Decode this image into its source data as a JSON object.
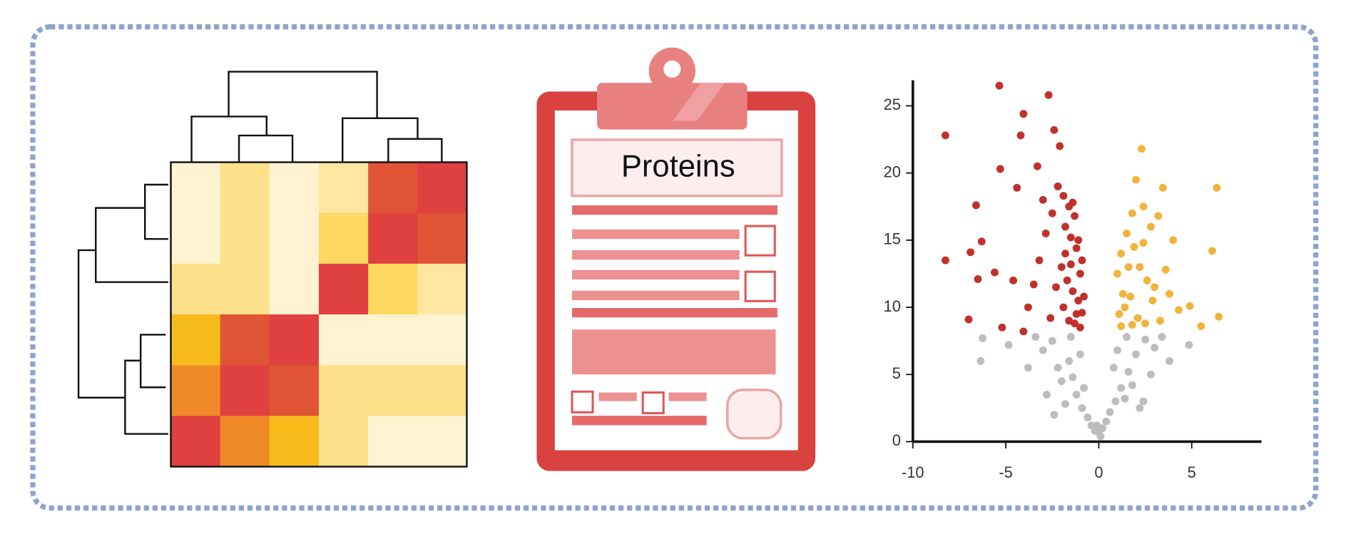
{
  "heatmap": {
    "colors": [
      [
        "#fff3d2",
        "#fde08a",
        "#fff3d2",
        "#fde7a0",
        "#e05535",
        "#e04040"
      ],
      [
        "#fff3d2",
        "#fde08a",
        "#fff3d2",
        "#fed860",
        "#e04040",
        "#e05535"
      ],
      [
        "#fde08a",
        "#fde08a",
        "#fff3d2",
        "#e04040",
        "#fed860",
        "#fde7a0"
      ],
      [
        "#f8bb1c",
        "#e05535",
        "#e04040",
        "#fff3d2",
        "#fff3d2",
        "#fff3d2"
      ],
      [
        "#f08a28",
        "#e04040",
        "#e05535",
        "#fde08a",
        "#fde08a",
        "#fde08a"
      ],
      [
        "#e04040",
        "#f08a28",
        "#f8bb1c",
        "#fde08a",
        "#fff3d2",
        "#fff3d2"
      ]
    ]
  },
  "clipboard": {
    "title": "Proteins"
  },
  "chart_data": {
    "type": "scatter",
    "xlim": [
      -10,
      8.75
    ],
    "ylim": [
      0,
      26.9
    ],
    "xticks": [
      -10,
      -5,
      0,
      5
    ],
    "yticks": [
      0,
      5,
      10,
      15,
      20,
      25
    ],
    "series": [
      {
        "color": "#c0312b",
        "x": [
          -8.25,
          -8.25,
          -5.35,
          -2.7,
          -4.05,
          -2.4,
          -4.2,
          -2.1,
          -5.3,
          -3.3,
          -6.6,
          -4.4,
          -6.3,
          -6.9,
          -5.6,
          -6.5,
          -7.0,
          -5.2,
          -4.05,
          -4.6,
          -3.5,
          -2.85,
          -3.0,
          -2.5,
          -3.8,
          -3.2,
          -2.2,
          -1.9,
          -1.6,
          -1.3,
          -1.1,
          -0.9,
          -1.8,
          -1.5,
          -1.2,
          -1.0,
          -2.0,
          -1.7,
          -1.4,
          -1.1,
          -0.9,
          -2.3,
          -1.9,
          -1.6,
          -1.3,
          -1.0,
          -0.8,
          -1.8,
          -1.5,
          -1.2,
          -2.6,
          -1.4
        ],
        "values": [
          22.8,
          13.5,
          26.5,
          25.8,
          24.4,
          23.2,
          22.8,
          22.0,
          20.3,
          20.5,
          17.6,
          18.9,
          14.9,
          14.1,
          12.6,
          12.1,
          9.1,
          8.5,
          8.2,
          12.0,
          11.7,
          15.5,
          18.0,
          17.0,
          10.0,
          13.5,
          19.0,
          18.3,
          17.5,
          16.8,
          15.0,
          13.5,
          16.0,
          15.2,
          14.4,
          12.5,
          13.0,
          12.0,
          11.2,
          10.5,
          9.6,
          11.5,
          10.0,
          9.0,
          8.8,
          8.5,
          10.8,
          14.0,
          13.2,
          9.5,
          9.2,
          17.8
        ]
      },
      {
        "color": "#f2b33d",
        "x": [
          2.3,
          6.35,
          3.45,
          6.1,
          6.45,
          4.9,
          5.5,
          2.0,
          2.4,
          2.8,
          3.2,
          1.8,
          1.5,
          1.2,
          1.0,
          1.3,
          1.6,
          1.9,
          2.2,
          2.6,
          3.0,
          3.6,
          4.0,
          1.1,
          1.4,
          1.7,
          2.1,
          2.5,
          2.9,
          3.3,
          3.8,
          4.3,
          1.2,
          1.8,
          2.4
        ],
        "values": [
          21.8,
          18.9,
          18.9,
          14.2,
          9.3,
          10.1,
          8.6,
          19.5,
          17.5,
          16.0,
          16.8,
          17.0,
          15.5,
          14.0,
          12.5,
          11.0,
          13.0,
          14.5,
          13.0,
          12.0,
          11.5,
          12.8,
          15.0,
          9.5,
          10.0,
          10.8,
          9.2,
          8.8,
          10.5,
          9.0,
          11.0,
          9.8,
          8.6,
          8.7,
          14.8
        ]
      },
      {
        "color": "#bdbdbd",
        "x": [
          -6.35,
          -6.25,
          -4.85,
          4.85,
          -3.8,
          -3.0,
          -2.5,
          -2.0,
          -1.6,
          -1.2,
          -0.9,
          -0.6,
          -0.4,
          -0.2,
          0.0,
          0.2,
          0.4,
          0.6,
          0.9,
          1.2,
          1.6,
          2.0,
          2.5,
          3.0,
          3.8,
          -2.8,
          -2.2,
          -1.8,
          -1.4,
          -1.0,
          1.0,
          1.4,
          1.8,
          2.2,
          2.8,
          -3.4,
          3.4,
          -1.5,
          1.5,
          -0.8,
          0.8,
          -2.4,
          2.4,
          0.1,
          -0.1
        ],
        "values": [
          6.0,
          7.7,
          7.2,
          7.2,
          5.5,
          6.8,
          7.5,
          4.5,
          6.0,
          3.5,
          2.5,
          1.8,
          1.2,
          0.8,
          0.7,
          1.0,
          1.5,
          2.2,
          3.0,
          4.0,
          5.2,
          6.5,
          7.6,
          7.0,
          6.0,
          3.5,
          5.5,
          2.8,
          4.8,
          6.5,
          6.8,
          3.2,
          4.2,
          2.5,
          5.0,
          7.8,
          7.8,
          7.8,
          7.8,
          4.0,
          5.5,
          2.0,
          3.0,
          0.4,
          1.2
        ]
      }
    ]
  }
}
